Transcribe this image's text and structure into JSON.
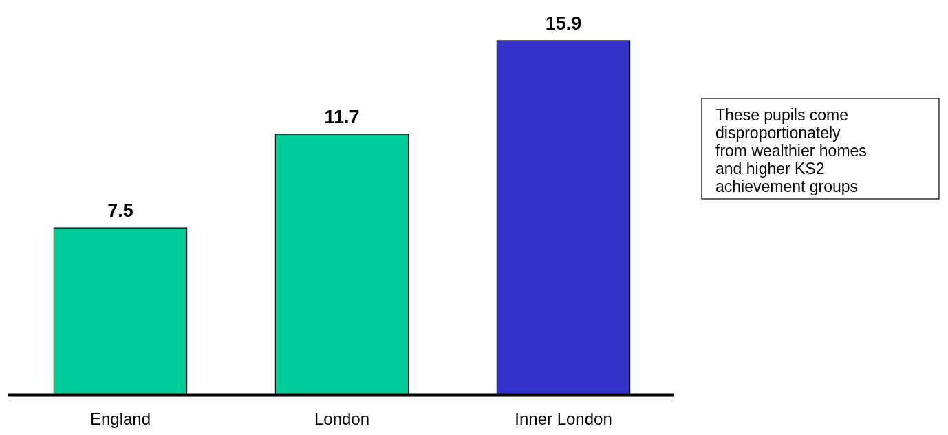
{
  "chart_data": {
    "type": "bar",
    "categories": [
      "England",
      "London",
      "Inner London"
    ],
    "values": [
      7.5,
      11.7,
      15.9
    ],
    "colors": [
      "#00cc99",
      "#00cc99",
      "#3333cc"
    ],
    "data_labels": true,
    "annotations": [
      "These pupils come disproportionately from wealthier homes and higher KS2 achievement groups"
    ]
  }
}
